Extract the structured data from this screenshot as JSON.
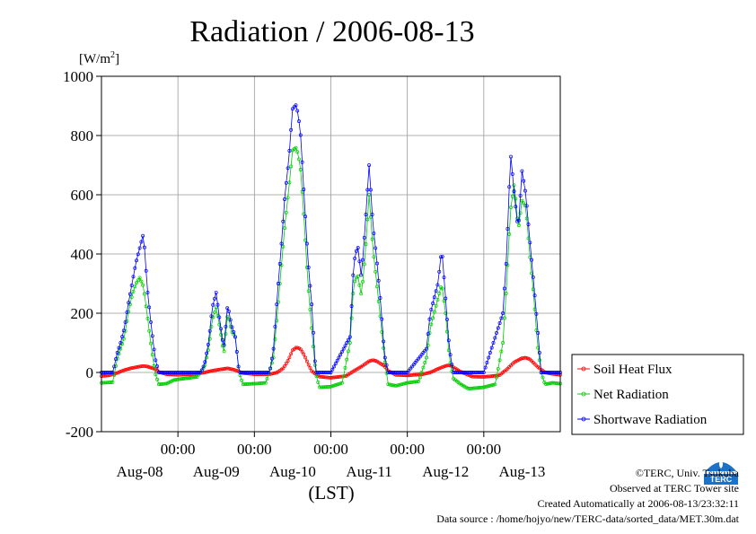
{
  "chart_data": {
    "type": "line",
    "title": "Radiation / 2006-08-13",
    "ylabel_prefix": "[W/m",
    "ylabel_sup": "2",
    "ylabel_suffix": "]",
    "xlabel": "(LST)",
    "ylim": [
      -200,
      1000
    ],
    "xlim": [
      0,
      6
    ],
    "x_unit": "days from 2006-08-08 00:00 LST",
    "yticks": [
      "1000",
      "800",
      "600",
      "400",
      "200",
      "0",
      "-200"
    ],
    "ytick_values": [
      1000,
      800,
      600,
      400,
      200,
      0,
      -200
    ],
    "xtick_time_label": "00:00",
    "xtick_times": [
      1,
      2,
      3,
      4,
      5
    ],
    "day_labels": [
      "Aug-08",
      "Aug-09",
      "Aug-10",
      "Aug-11",
      "Aug-12",
      "Aug-13"
    ],
    "day_label_positions": [
      0.5,
      1.5,
      2.5,
      3.5,
      4.5,
      5.5
    ],
    "grid": true,
    "legend_position": "right",
    "series": [
      {
        "name": "Soil Heat Flux",
        "color": "#ff0000",
        "points": [
          [
            0.0,
            -12
          ],
          [
            0.1,
            -10
          ],
          [
            0.2,
            -2
          ],
          [
            0.3,
            8
          ],
          [
            0.4,
            15
          ],
          [
            0.5,
            20
          ],
          [
            0.55,
            22
          ],
          [
            0.6,
            20
          ],
          [
            0.7,
            12
          ],
          [
            0.75,
            2
          ],
          [
            0.85,
            -6
          ],
          [
            1.0,
            -8
          ],
          [
            1.2,
            -6
          ],
          [
            1.35,
            0
          ],
          [
            1.45,
            6
          ],
          [
            1.55,
            10
          ],
          [
            1.65,
            14
          ],
          [
            1.75,
            8
          ],
          [
            1.85,
            -2
          ],
          [
            2.0,
            -6
          ],
          [
            2.2,
            -6
          ],
          [
            2.3,
            0
          ],
          [
            2.38,
            15
          ],
          [
            2.44,
            40
          ],
          [
            2.5,
            75
          ],
          [
            2.55,
            85
          ],
          [
            2.6,
            80
          ],
          [
            2.65,
            60
          ],
          [
            2.7,
            30
          ],
          [
            2.75,
            5
          ],
          [
            2.85,
            -14
          ],
          [
            3.0,
            -18
          ],
          [
            3.2,
            -12
          ],
          [
            3.3,
            5
          ],
          [
            3.4,
            20
          ],
          [
            3.5,
            38
          ],
          [
            3.55,
            42
          ],
          [
            3.6,
            38
          ],
          [
            3.7,
            22
          ],
          [
            3.75,
            5
          ],
          [
            3.85,
            -8
          ],
          [
            4.0,
            -10
          ],
          [
            4.2,
            -6
          ],
          [
            4.3,
            0
          ],
          [
            4.4,
            12
          ],
          [
            4.5,
            22
          ],
          [
            4.55,
            25
          ],
          [
            4.6,
            18
          ],
          [
            4.7,
            2
          ],
          [
            4.85,
            -14
          ],
          [
            5.0,
            -15
          ],
          [
            5.2,
            -10
          ],
          [
            5.3,
            10
          ],
          [
            5.4,
            35
          ],
          [
            5.5,
            48
          ],
          [
            5.55,
            50
          ],
          [
            5.6,
            45
          ],
          [
            5.7,
            20
          ],
          [
            5.8,
            0
          ],
          [
            5.9,
            -5
          ],
          [
            6.0,
            -8
          ]
        ]
      },
      {
        "name": "Net Radiation",
        "color": "#00cc00",
        "points": [
          [
            0.0,
            -35
          ],
          [
            0.15,
            -33
          ],
          [
            0.2,
            40
          ],
          [
            0.25,
            80
          ],
          [
            0.3,
            120
          ],
          [
            0.35,
            200
          ],
          [
            0.4,
            260
          ],
          [
            0.45,
            300
          ],
          [
            0.5,
            320
          ],
          [
            0.55,
            290
          ],
          [
            0.6,
            190
          ],
          [
            0.65,
            90
          ],
          [
            0.7,
            0
          ],
          [
            0.75,
            -40
          ],
          [
            0.85,
            -38
          ],
          [
            0.95,
            -25
          ],
          [
            1.1,
            -20
          ],
          [
            1.25,
            -15
          ],
          [
            1.35,
            20
          ],
          [
            1.4,
            80
          ],
          [
            1.45,
            180
          ],
          [
            1.5,
            220
          ],
          [
            1.55,
            150
          ],
          [
            1.6,
            60
          ],
          [
            1.65,
            200
          ],
          [
            1.7,
            140
          ],
          [
            1.75,
            120
          ],
          [
            1.8,
            0
          ],
          [
            1.85,
            -40
          ],
          [
            2.0,
            -38
          ],
          [
            2.15,
            -35
          ],
          [
            2.25,
            50
          ],
          [
            2.3,
            200
          ],
          [
            2.35,
            350
          ],
          [
            2.4,
            500
          ],
          [
            2.45,
            620
          ],
          [
            2.5,
            750
          ],
          [
            2.55,
            760
          ],
          [
            2.6,
            700
          ],
          [
            2.65,
            520
          ],
          [
            2.7,
            300
          ],
          [
            2.75,
            150
          ],
          [
            2.8,
            0
          ],
          [
            2.85,
            -50
          ],
          [
            3.0,
            -48
          ],
          [
            3.15,
            -35
          ],
          [
            3.25,
            100
          ],
          [
            3.3,
            300
          ],
          [
            3.35,
            330
          ],
          [
            3.4,
            260
          ],
          [
            3.45,
            400
          ],
          [
            3.5,
            600
          ],
          [
            3.55,
            420
          ],
          [
            3.6,
            300
          ],
          [
            3.65,
            180
          ],
          [
            3.7,
            50
          ],
          [
            3.75,
            -40
          ],
          [
            3.85,
            -45
          ],
          [
            4.0,
            -35
          ],
          [
            4.15,
            -30
          ],
          [
            4.25,
            50
          ],
          [
            4.3,
            150
          ],
          [
            4.35,
            200
          ],
          [
            4.4,
            250
          ],
          [
            4.45,
            300
          ],
          [
            4.5,
            200
          ],
          [
            4.55,
            50
          ],
          [
            4.6,
            -20
          ],
          [
            4.7,
            -40
          ],
          [
            4.8,
            -55
          ],
          [
            5.0,
            -50
          ],
          [
            5.15,
            -40
          ],
          [
            5.25,
            100
          ],
          [
            5.3,
            300
          ],
          [
            5.35,
            550
          ],
          [
            5.4,
            640
          ],
          [
            5.45,
            480
          ],
          [
            5.5,
            580
          ],
          [
            5.55,
            560
          ],
          [
            5.6,
            400
          ],
          [
            5.65,
            270
          ],
          [
            5.7,
            100
          ],
          [
            5.75,
            0
          ],
          [
            5.8,
            -40
          ],
          [
            5.9,
            -35
          ],
          [
            6.0,
            -38
          ]
        ]
      },
      {
        "name": "Shortwave Radiation",
        "color": "#0000ff",
        "points": [
          [
            0.0,
            0
          ],
          [
            0.15,
            0
          ],
          [
            0.2,
            60
          ],
          [
            0.25,
            100
          ],
          [
            0.3,
            150
          ],
          [
            0.35,
            230
          ],
          [
            0.4,
            300
          ],
          [
            0.45,
            370
          ],
          [
            0.5,
            420
          ],
          [
            0.55,
            470
          ],
          [
            0.6,
            280
          ],
          [
            0.65,
            160
          ],
          [
            0.7,
            50
          ],
          [
            0.75,
            0
          ],
          [
            1.0,
            0
          ],
          [
            1.3,
            0
          ],
          [
            1.35,
            30
          ],
          [
            1.4,
            100
          ],
          [
            1.45,
            220
          ],
          [
            1.5,
            270
          ],
          [
            1.55,
            170
          ],
          [
            1.6,
            80
          ],
          [
            1.65,
            230
          ],
          [
            1.7,
            160
          ],
          [
            1.75,
            120
          ],
          [
            1.8,
            0
          ],
          [
            2.0,
            0
          ],
          [
            2.2,
            0
          ],
          [
            2.25,
            80
          ],
          [
            2.3,
            260
          ],
          [
            2.35,
            420
          ],
          [
            2.4,
            600
          ],
          [
            2.45,
            720
          ],
          [
            2.5,
            890
          ],
          [
            2.55,
            905
          ],
          [
            2.6,
            820
          ],
          [
            2.65,
            600
          ],
          [
            2.7,
            380
          ],
          [
            2.75,
            230
          ],
          [
            2.8,
            0
          ],
          [
            3.0,
            0
          ],
          [
            3.25,
            120
          ],
          [
            3.3,
            370
          ],
          [
            3.35,
            430
          ],
          [
            3.4,
            320
          ],
          [
            3.45,
            500
          ],
          [
            3.5,
            700
          ],
          [
            3.55,
            500
          ],
          [
            3.6,
            380
          ],
          [
            3.65,
            240
          ],
          [
            3.7,
            60
          ],
          [
            3.75,
            0
          ],
          [
            4.0,
            0
          ],
          [
            4.25,
            80
          ],
          [
            4.3,
            200
          ],
          [
            4.35,
            250
          ],
          [
            4.4,
            300
          ],
          [
            4.45,
            420
          ],
          [
            4.5,
            250
          ],
          [
            4.55,
            80
          ],
          [
            4.6,
            0
          ],
          [
            5.0,
            0
          ],
          [
            5.25,
            200
          ],
          [
            5.3,
            400
          ],
          [
            5.35,
            740
          ],
          [
            5.4,
            600
          ],
          [
            5.45,
            480
          ],
          [
            5.5,
            680
          ],
          [
            5.55,
            600
          ],
          [
            5.6,
            450
          ],
          [
            5.65,
            310
          ],
          [
            5.7,
            160
          ],
          [
            5.75,
            0
          ],
          [
            6.0,
            0
          ]
        ]
      }
    ]
  },
  "credits": {
    "copyright": "©TERC, Univ. Tsukuba",
    "observed": "Observed at TERC Tower site",
    "created": "Created Automatically at 2006-08-13/23:32:11",
    "source": "Data source : /home/hojyo/new/TERC-data/sorted_data/MET.30m.dat"
  },
  "logo": {
    "text": "TERC",
    "color": "#1a73c9"
  }
}
